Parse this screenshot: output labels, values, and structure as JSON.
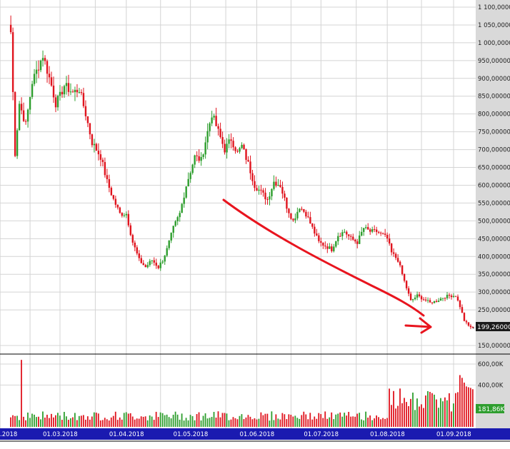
{
  "chart_data": {
    "type": "candlestick",
    "price_axis": {
      "ylim": [
        130000,
        1100000
      ],
      "tick_labels": [
        "1 100,000000",
        "1 050,000000",
        "1 000,000000",
        "950,000000",
        "900,000000",
        "850,000000",
        "800,000000",
        "750,000000",
        "700,000000",
        "650,000000",
        "600,000000",
        "550,000000",
        "500,000000",
        "450,000000",
        "400,000000",
        "350,000000",
        "300,000000",
        "250,000000",
        "150,000000"
      ],
      "tick_values": [
        1100000,
        1050000,
        1000000,
        950000,
        900000,
        850000,
        800000,
        750000,
        700000,
        650000,
        600000,
        550000,
        500000,
        450000,
        400000,
        350000,
        300000,
        250000,
        150000
      ],
      "last_price_label": "199,260000",
      "last_price_value": 199260
    },
    "volume_axis": {
      "ylim": [
        0,
        700000
      ],
      "tick_labels": [
        "600,00K",
        "400,00K"
      ],
      "tick_values": [
        600000,
        400000
      ],
      "last_volume_label": "181,86K",
      "last_volume_value": 181860
    },
    "x_axis": {
      "tick_labels": [
        ".2018",
        "01.03.2018",
        "01.04.2018",
        "01.05.2018",
        "01.06.2018",
        "01.07.2018",
        "01.08.2018",
        "01.09.2018"
      ],
      "tick_dates": [
        "2018-02-01",
        "2018-03-01",
        "2018-04-01",
        "2018-05-01",
        "2018-06-01",
        "2018-07-01",
        "2018-08-01",
        "2018-09-01"
      ]
    },
    "grid": true,
    "annotation": {
      "type": "trend-arrow",
      "direction": "down",
      "color": "#e8141e"
    },
    "closes_anchors": [
      [
        "2018-02-06",
        1030000
      ],
      [
        "2018-02-08",
        690000
      ],
      [
        "2018-02-10",
        830000
      ],
      [
        "2018-02-13",
        770000
      ],
      [
        "2018-02-16",
        890000
      ],
      [
        "2018-02-21",
        965000
      ],
      [
        "2018-02-25",
        880000
      ],
      [
        "2018-02-27",
        830000
      ],
      [
        "2018-03-01",
        850000
      ],
      [
        "2018-03-03",
        880000
      ],
      [
        "2018-03-07",
        860000
      ],
      [
        "2018-03-10",
        870000
      ],
      [
        "2018-03-13",
        800000
      ],
      [
        "2018-03-16",
        720000
      ],
      [
        "2018-03-20",
        680000
      ],
      [
        "2018-03-23",
        610000
      ],
      [
        "2018-03-26",
        560000
      ],
      [
        "2018-03-29",
        520000
      ],
      [
        "2018-04-01",
        520000
      ],
      [
        "2018-04-04",
        440000
      ],
      [
        "2018-04-07",
        390000
      ],
      [
        "2018-04-10",
        370000
      ],
      [
        "2018-04-13",
        390000
      ],
      [
        "2018-04-16",
        370000
      ],
      [
        "2018-04-18",
        390000
      ],
      [
        "2018-04-20",
        420000
      ],
      [
        "2018-04-23",
        480000
      ],
      [
        "2018-04-26",
        520000
      ],
      [
        "2018-04-29",
        600000
      ],
      [
        "2018-05-01",
        640000
      ],
      [
        "2018-05-03",
        680000
      ],
      [
        "2018-05-06",
        670000
      ],
      [
        "2018-05-09",
        750000
      ],
      [
        "2018-05-11",
        800000
      ],
      [
        "2018-05-14",
        750000
      ],
      [
        "2018-05-17",
        700000
      ],
      [
        "2018-05-20",
        730000
      ],
      [
        "2018-05-23",
        690000
      ],
      [
        "2018-05-25",
        710000
      ],
      [
        "2018-05-28",
        660000
      ],
      [
        "2018-05-31",
        600000
      ],
      [
        "2018-06-03",
        580000
      ],
      [
        "2018-06-06",
        560000
      ],
      [
        "2018-06-09",
        610000
      ],
      [
        "2018-06-12",
        600000
      ],
      [
        "2018-06-15",
        540000
      ],
      [
        "2018-06-18",
        500000
      ],
      [
        "2018-06-21",
        540000
      ],
      [
        "2018-06-24",
        520000
      ],
      [
        "2018-06-27",
        480000
      ],
      [
        "2018-06-30",
        440000
      ],
      [
        "2018-07-03",
        430000
      ],
      [
        "2018-07-06",
        420000
      ],
      [
        "2018-07-09",
        460000
      ],
      [
        "2018-07-12",
        470000
      ],
      [
        "2018-07-15",
        450000
      ],
      [
        "2018-07-18",
        440000
      ],
      [
        "2018-07-21",
        480000
      ],
      [
        "2018-07-24",
        470000
      ],
      [
        "2018-07-27",
        470000
      ],
      [
        "2018-07-30",
        460000
      ],
      [
        "2018-08-01",
        450000
      ],
      [
        "2018-08-03",
        410000
      ],
      [
        "2018-08-06",
        390000
      ],
      [
        "2018-08-09",
        330000
      ],
      [
        "2018-08-12",
        275000
      ],
      [
        "2018-08-15",
        290000
      ],
      [
        "2018-08-18",
        280000
      ],
      [
        "2018-08-21",
        270000
      ],
      [
        "2018-08-24",
        275000
      ],
      [
        "2018-08-27",
        285000
      ],
      [
        "2018-08-30",
        290000
      ],
      [
        "2018-09-02",
        290000
      ],
      [
        "2018-09-04",
        260000
      ],
      [
        "2018-09-06",
        220000
      ],
      [
        "2018-09-08",
        205000
      ],
      [
        "2018-09-10",
        199260
      ]
    ]
  },
  "colors": {
    "up": "#2e9e2e",
    "down": "#e0141e",
    "axis_panel": "#d9d9d9",
    "date_bar": "#1a1ab0",
    "arrow": "#e8141e",
    "grid": "#d4d4d4",
    "last_price_badge": "#1a1a1a",
    "last_volume_badge": "#2f9e2f"
  }
}
